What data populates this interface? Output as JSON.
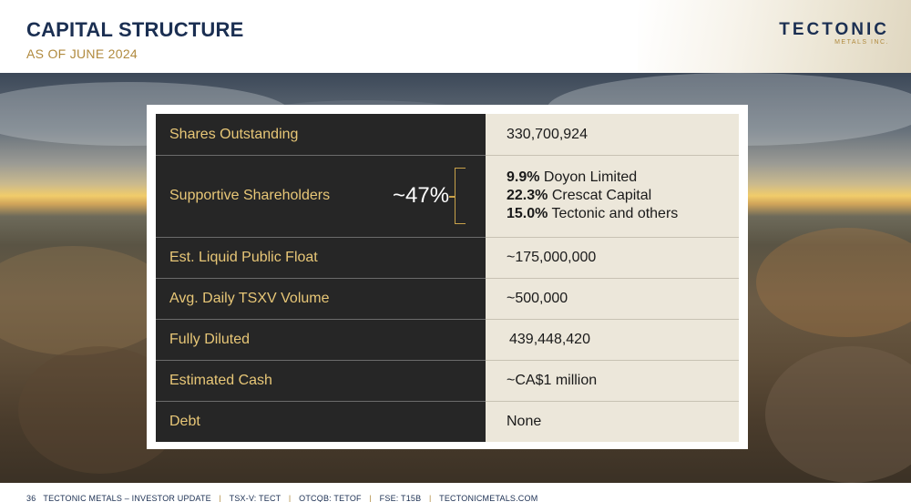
{
  "header": {
    "title": "CAPITAL STRUCTURE",
    "subtitle": "AS OF JUNE 2024",
    "logo_main": "TECTONIC",
    "logo_sub": "METALS INC."
  },
  "table": {
    "rows": [
      {
        "label": "Shares Outstanding",
        "value": "330,700,924"
      },
      {
        "label": "Supportive Shareholders",
        "value": ""
      },
      {
        "label": "Est. Liquid Public Float",
        "value": "~175,000,000"
      },
      {
        "label": "Avg. Daily TSXV Volume",
        "value": "~500,000"
      },
      {
        "label": "Fully Diluted",
        "value": "439,448,420"
      },
      {
        "label": "Estimated Cash",
        "value": "~CA$1 million"
      },
      {
        "label": "Debt",
        "value": "None"
      }
    ],
    "supportive_total": "~47%",
    "holders": [
      {
        "pct": "9.9%",
        "name": "Doyon Limited"
      },
      {
        "pct": "22.3%",
        "name": "Crescat Capital"
      },
      {
        "pct": "15.0%",
        "name": "Tectonic and others"
      }
    ]
  },
  "footer": {
    "page": "36",
    "doc": "TECTONIC METALS – INVESTOR UPDATE",
    "tsxv": "TSX-V: TECT",
    "otcqb": "OTCQB: TETOF",
    "fse": "FSE: T15B",
    "site": "TECTONICMETALS.COM"
  },
  "colors": {
    "navy": "#1b2f52",
    "gold": "#b08a3e",
    "dark_cell": "#262626",
    "light_cell": "#ece7da"
  }
}
